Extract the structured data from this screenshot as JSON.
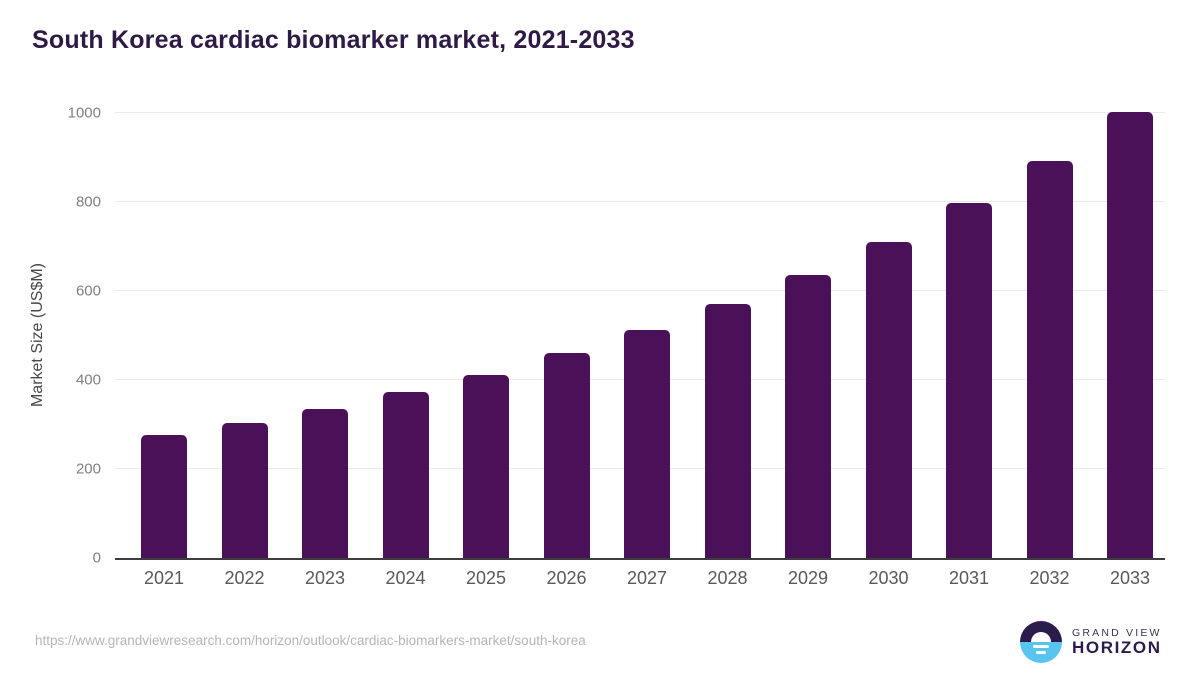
{
  "title": "South Korea cardiac biomarker market, 2021-2033",
  "chart_data": {
    "type": "bar",
    "title": "South Korea cardiac biomarker market, 2021-2033",
    "categories": [
      "2021",
      "2022",
      "2023",
      "2024",
      "2025",
      "2026",
      "2027",
      "2028",
      "2029",
      "2030",
      "2031",
      "2032",
      "2033"
    ],
    "values": [
      276,
      304,
      334,
      373,
      412,
      460,
      513,
      570,
      636,
      711,
      797,
      893,
      1003
    ],
    "xlabel": "",
    "ylabel": "Market Size (US$M)",
    "ylim": [
      0,
      1000
    ],
    "yticks": [
      0,
      200,
      400,
      600,
      800,
      1000
    ],
    "grid": true,
    "legend": false,
    "bar_color": "#4a1158"
  },
  "colors": {
    "title_text": "#2e1a45",
    "bar": "#4a1158",
    "gridline": "#eaeaea",
    "axis_line": "#3d3d3d",
    "tick_text": "#808080",
    "x_label_text": "#595959",
    "url_text": "#b5b5b5",
    "logo_dark": "#2c1b4d",
    "logo_blue": "#5ac4f1"
  },
  "footer": {
    "source_url": "https://www.grandviewresearch.com/horizon/outlook/cardiac-biomarkers-market/south-korea",
    "logo": {
      "line1": "GRAND VIEW",
      "line2": "HORIZON"
    }
  }
}
